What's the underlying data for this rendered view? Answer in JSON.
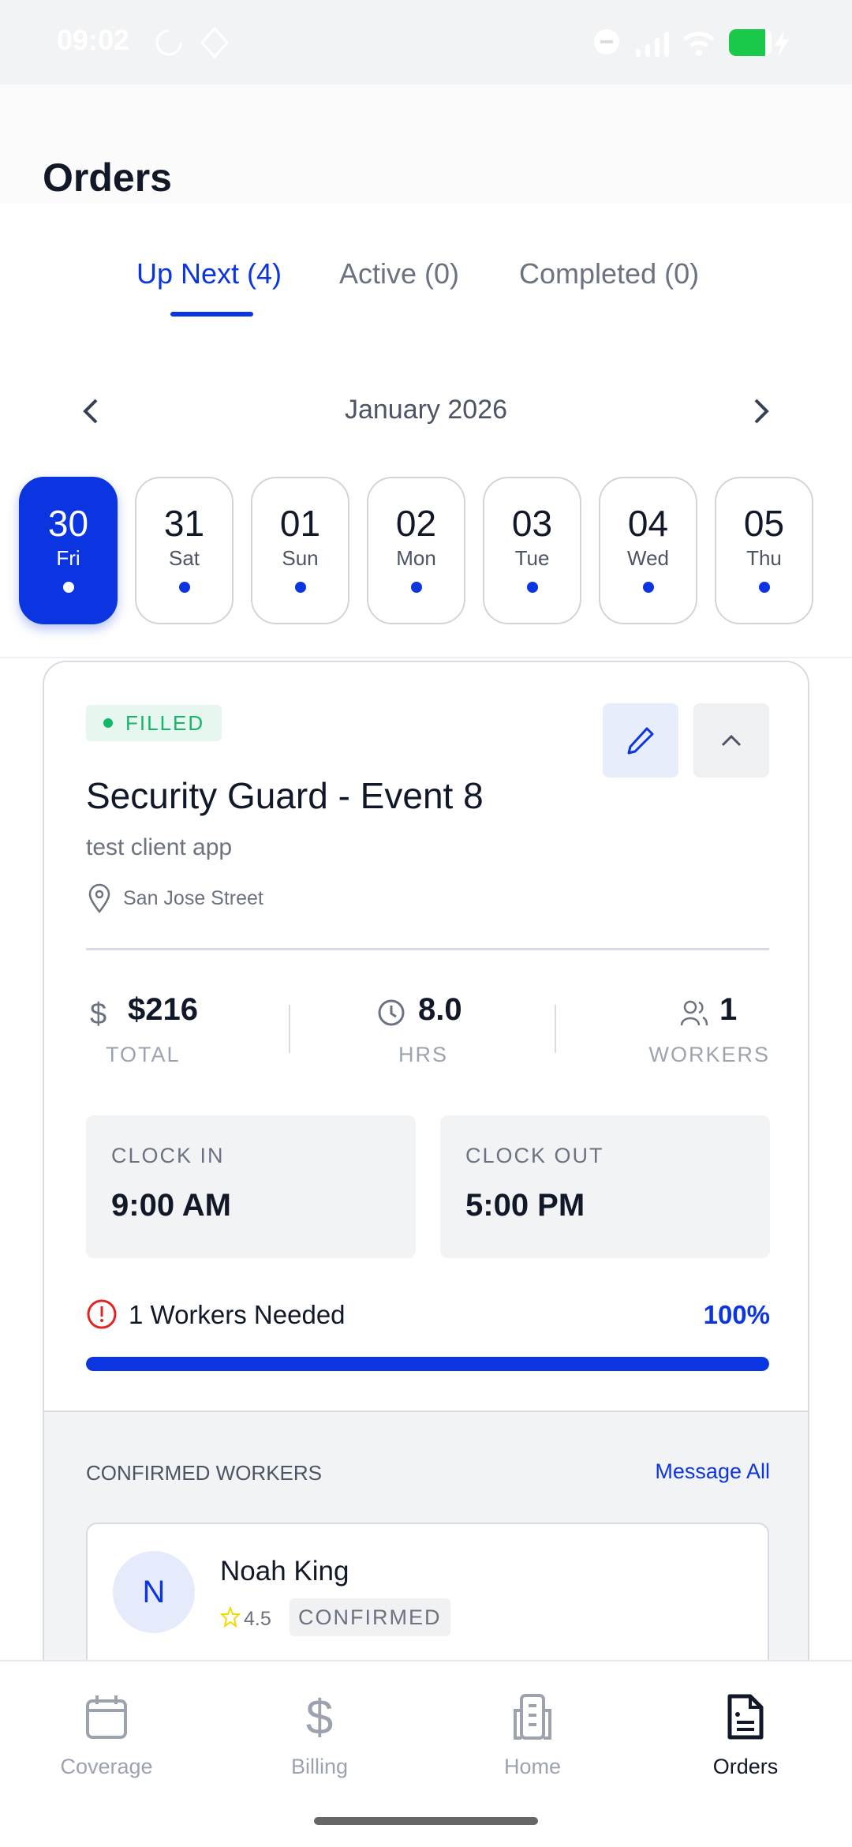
{
  "status_bar": {
    "time": "09:02",
    "battery_color": "#1ac94a"
  },
  "page": {
    "title": "Orders"
  },
  "tabs": [
    {
      "label": "Up Next (4)",
      "active": true
    },
    {
      "label": "Active (0)",
      "active": false
    },
    {
      "label": "Completed (0)",
      "active": false
    }
  ],
  "calendar": {
    "month": "January 2026",
    "days": [
      {
        "num": "30",
        "dow": "Fri",
        "selected": true
      },
      {
        "num": "31",
        "dow": "Sat"
      },
      {
        "num": "01",
        "dow": "Sun"
      },
      {
        "num": "02",
        "dow": "Mon"
      },
      {
        "num": "03",
        "dow": "Tue"
      },
      {
        "num": "04",
        "dow": "Wed"
      },
      {
        "num": "05",
        "dow": "Thu"
      }
    ]
  },
  "order": {
    "status": "FILLED",
    "title": "Security Guard - Event 8",
    "client": "test client app",
    "location": "San Jose Street",
    "stats": {
      "total": "$216",
      "total_label": "TOTAL",
      "hours": "8.0",
      "hours_label": "HRS",
      "workers": "1",
      "workers_label": "WORKERS"
    },
    "clock_in_label": "CLOCK IN",
    "clock_in": "9:00 AM",
    "clock_out_label": "CLOCK OUT",
    "clock_out": "5:00 PM",
    "workers_needed": "1 Workers Needed",
    "progress_label": "100%",
    "progress": 100,
    "confirmed_label": "CONFIRMED WORKERS",
    "message_all": "Message All",
    "workers": [
      {
        "initial": "N",
        "name": "Noah King",
        "rating": "4.5",
        "status": "CONFIRMED"
      }
    ]
  },
  "nav": [
    {
      "label": "Coverage"
    },
    {
      "label": "Billing"
    },
    {
      "label": "Home"
    },
    {
      "label": "Orders",
      "active": true
    }
  ],
  "colors": {
    "accent": "#0b35e0",
    "success": "#12b76a",
    "danger": "#e02424"
  }
}
